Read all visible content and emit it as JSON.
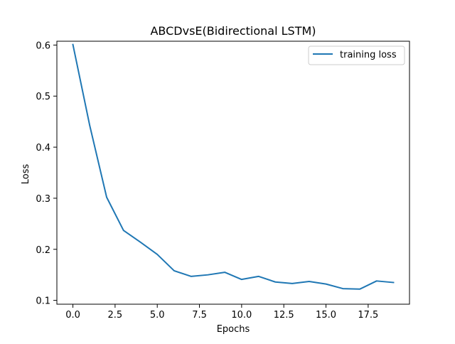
{
  "chart_data": {
    "type": "line",
    "title": "ABCDvsE(Bidirectional LSTM)",
    "xlabel": "Epochs",
    "ylabel": "Loss",
    "xlim": [
      -0.95,
      19.95
    ],
    "ylim": [
      0.0925,
      0.6075
    ],
    "xticks": [
      0.0,
      2.5,
      5.0,
      7.5,
      10.0,
      12.5,
      15.0,
      17.5
    ],
    "xtick_labels": [
      "0.0",
      "2.5",
      "5.0",
      "7.5",
      "10.0",
      "12.5",
      "15.0",
      "17.5"
    ],
    "yticks": [
      0.1,
      0.2,
      0.3,
      0.4,
      0.5,
      0.6
    ],
    "ytick_labels": [
      "0.1",
      "0.2",
      "0.3",
      "0.4",
      "0.5",
      "0.6"
    ],
    "grid": false,
    "legend_location": "upper right",
    "series": [
      {
        "name": "training loss",
        "color": "#1f77b4",
        "x": [
          0,
          1,
          2,
          3,
          4,
          5,
          6,
          7,
          8,
          9,
          10,
          11,
          12,
          13,
          14,
          15,
          16,
          17,
          18,
          19
        ],
        "values": [
          0.601,
          0.442,
          0.302,
          0.237,
          0.214,
          0.19,
          0.158,
          0.147,
          0.15,
          0.155,
          0.141,
          0.147,
          0.136,
          0.133,
          0.137,
          0.132,
          0.123,
          0.122,
          0.138,
          0.135
        ]
      }
    ]
  }
}
